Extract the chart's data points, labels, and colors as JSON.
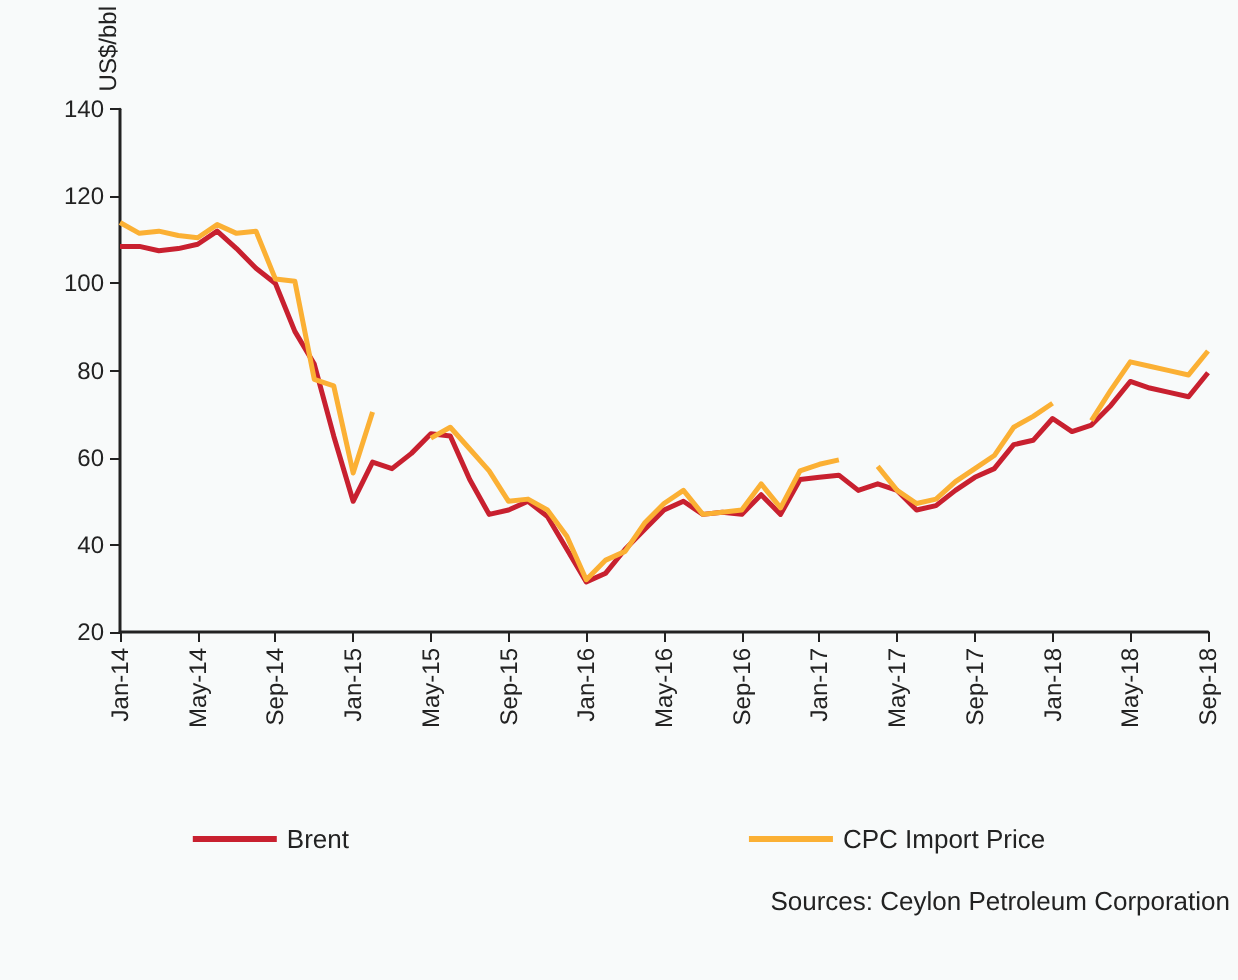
{
  "chart_data": {
    "type": "line",
    "ylabel": "US$/bbl",
    "categories": [
      "Jan-14",
      null,
      null,
      null,
      "May-14",
      null,
      null,
      null,
      "Sep-14",
      null,
      null,
      null,
      "Jan-15",
      null,
      null,
      null,
      "May-15",
      null,
      null,
      null,
      "Sep-15",
      null,
      null,
      null,
      "Jan-16",
      null,
      null,
      null,
      "May-16",
      null,
      null,
      null,
      "Sep-16",
      null,
      null,
      null,
      "Jan-17",
      null,
      null,
      null,
      "May-17",
      null,
      null,
      null,
      "Sep-17",
      null,
      null,
      null,
      "Jan-18",
      null,
      null,
      null,
      "May-18",
      null,
      null,
      null,
      "Sep-18"
    ],
    "series": [
      {
        "name": "Brent",
        "color": "#c8202f",
        "values": [
          108.5,
          108.5,
          107.5,
          108,
          109,
          112,
          108,
          103.5,
          100,
          89,
          81.5,
          65,
          50,
          59,
          57.5,
          61,
          65.5,
          65,
          55,
          47,
          48,
          50,
          46.5,
          39,
          31.5,
          33.5,
          39,
          43.5,
          48,
          50,
          47,
          47.5,
          47,
          51.5,
          47,
          55,
          55.5,
          56,
          52.5,
          54,
          52.5,
          48,
          49,
          52.5,
          55.5,
          57.5,
          63,
          64,
          69,
          66,
          67.5,
          72,
          77.5,
          76,
          75,
          74,
          79.5
        ]
      },
      {
        "name": "CPC Import Price",
        "color": "#fbb034",
        "values": [
          114,
          111.5,
          112,
          111,
          110.5,
          113.5,
          111.5,
          112,
          101,
          100.5,
          78,
          76.5,
          56.5,
          70.5,
          null,
          null,
          64.5,
          67,
          62,
          57,
          50,
          50.5,
          48,
          42,
          32,
          36.5,
          38.5,
          45,
          49.5,
          52.5,
          47,
          47.5,
          48,
          54,
          48.5,
          57,
          58.5,
          59.5,
          null,
          58,
          52.5,
          49.5,
          50.5,
          54.5,
          57.5,
          60.5,
          67,
          69.5,
          72.5,
          null,
          68.5,
          75.5,
          82,
          81,
          80,
          79,
          84.5
        ]
      }
    ],
    "ylim": [
      20,
      140
    ],
    "yticks": [
      20,
      40,
      60,
      80,
      100,
      120,
      140
    ],
    "grid": false,
    "legend": "bottom",
    "marker": "none",
    "annotations": [
      "Sources: Ceylon Petroleum Corporation"
    ]
  }
}
